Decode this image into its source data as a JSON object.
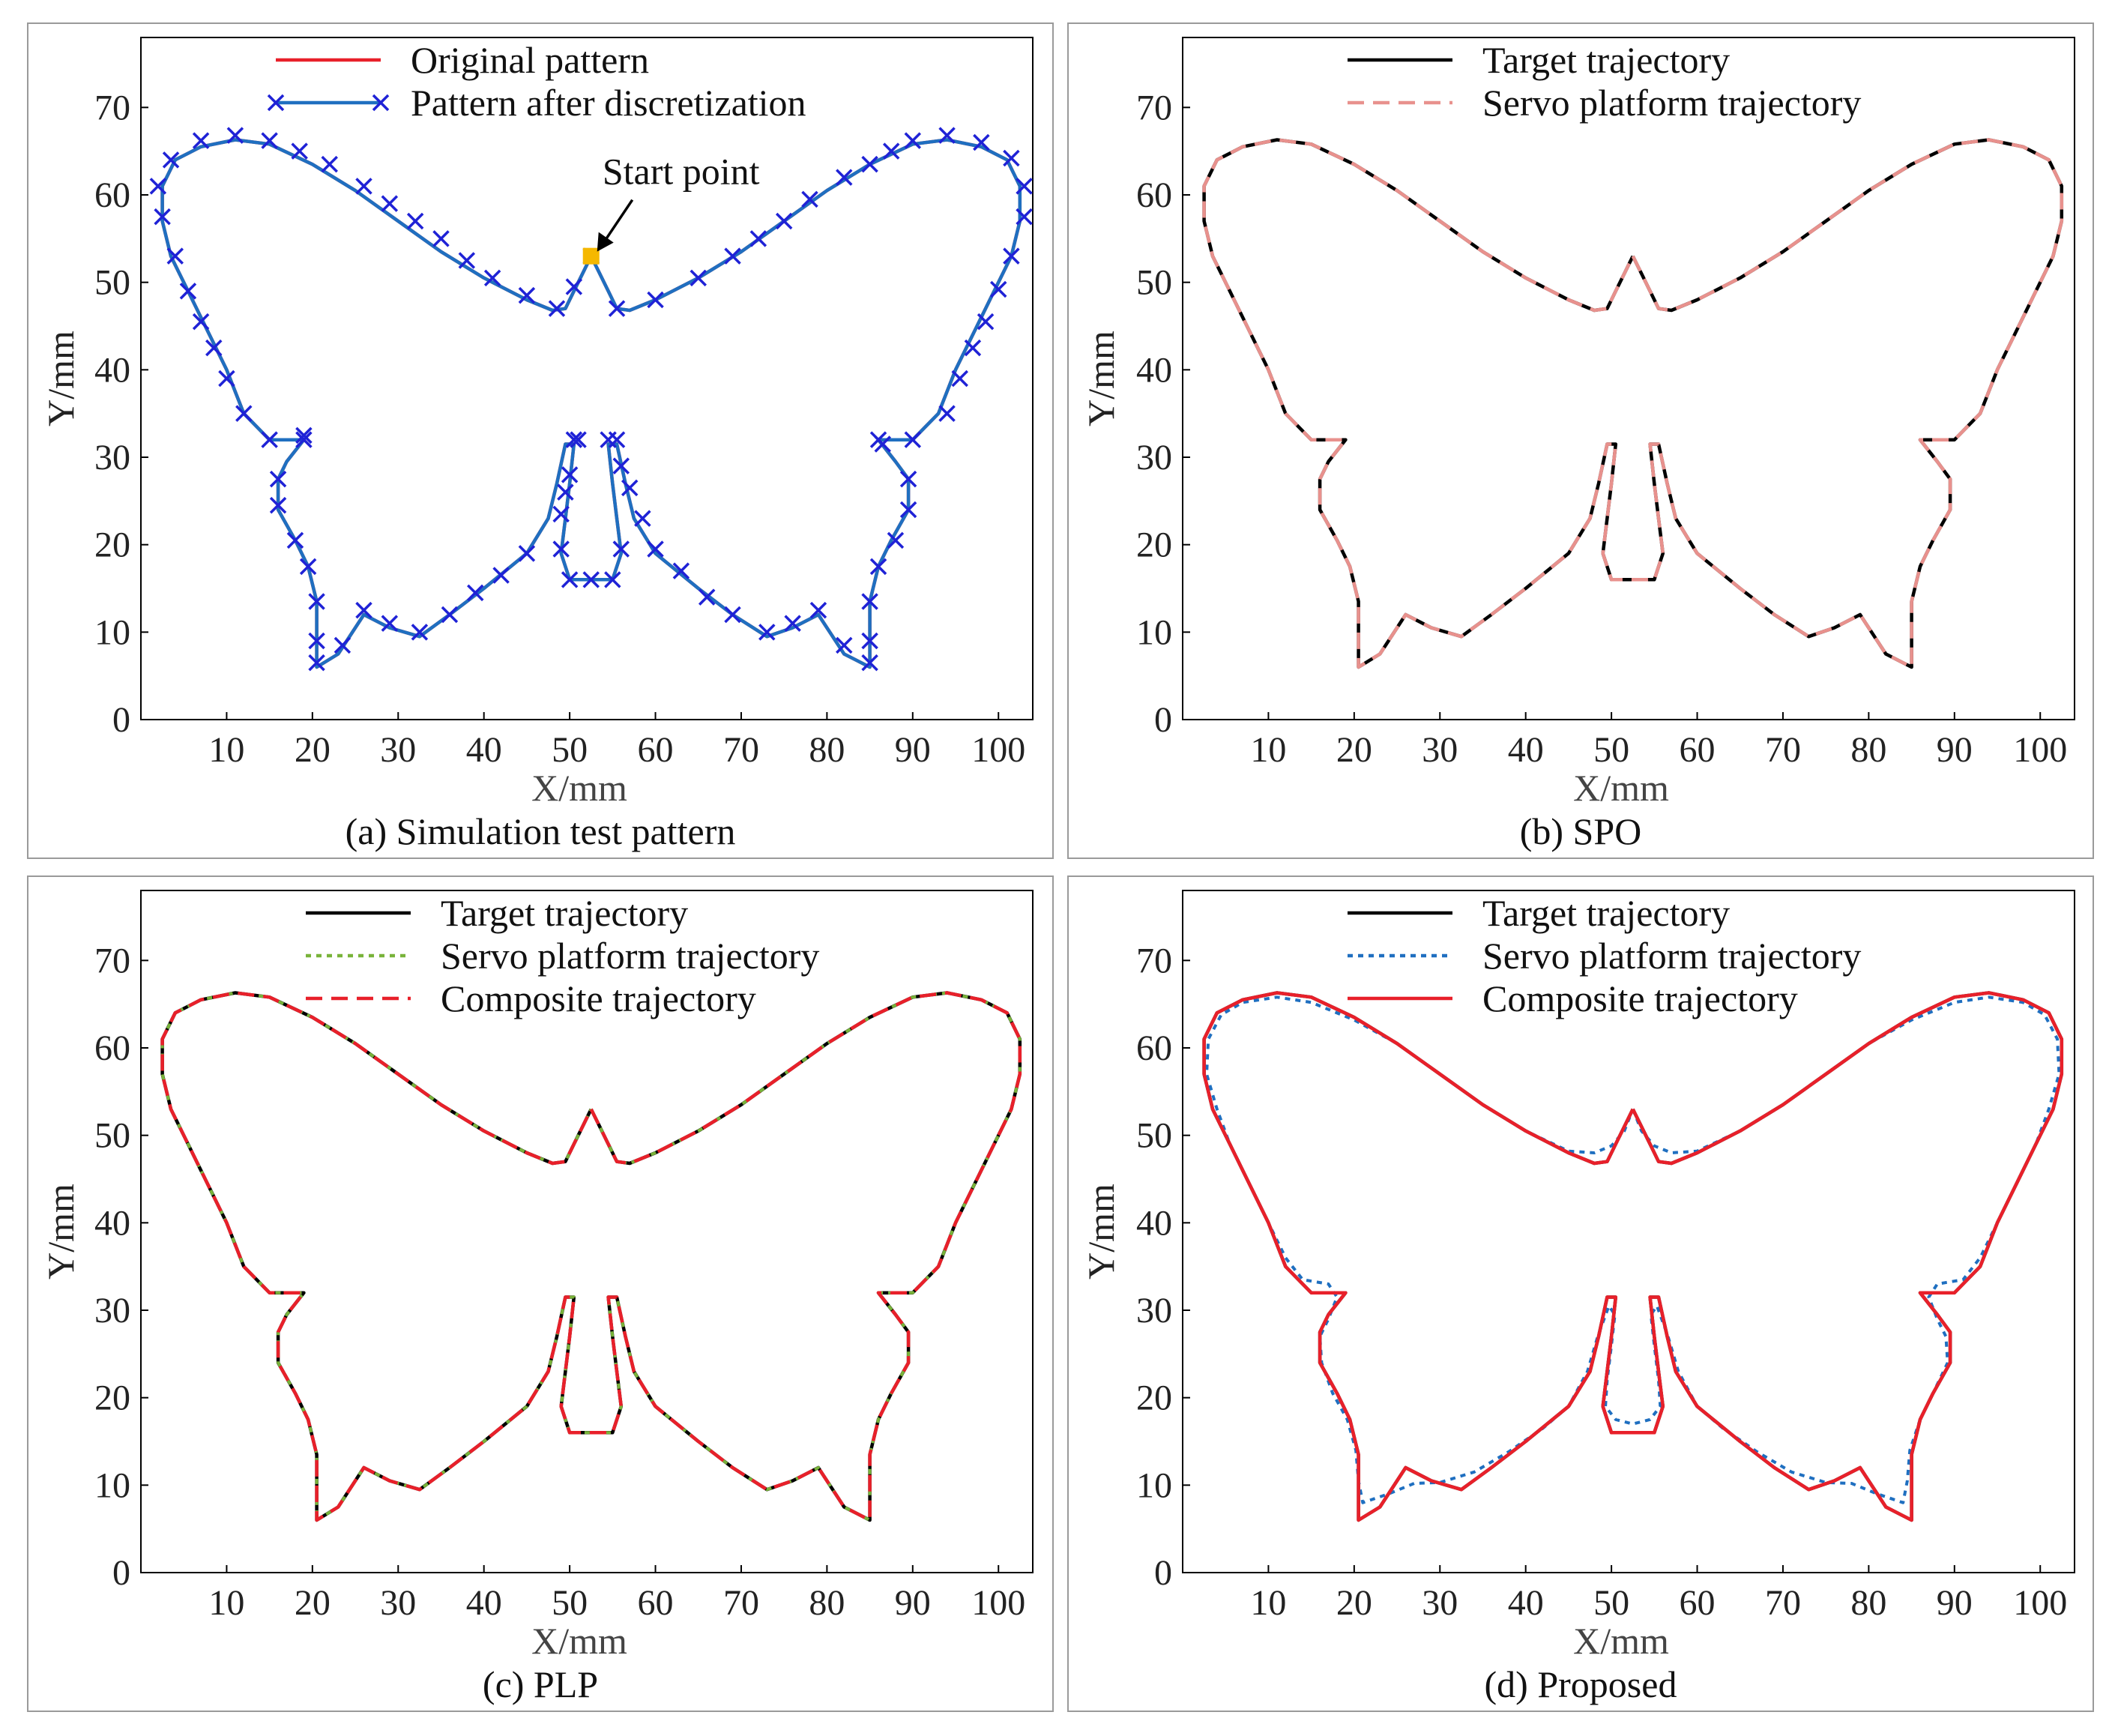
{
  "chart_data": [
    {
      "id": "a",
      "type": "line",
      "caption": "(a) Simulation test pattern",
      "xlabel": "X/mm",
      "ylabel": "Y/mm",
      "xticks": [
        10,
        20,
        30,
        40,
        50,
        60,
        70,
        80,
        90,
        100
      ],
      "yticks": [
        0,
        10,
        20,
        30,
        40,
        50,
        60,
        70
      ],
      "xlim": [
        0,
        104
      ],
      "ylim": [
        0,
        78
      ],
      "legend": [
        "Original pattern",
        "Pattern after discretization"
      ],
      "annotation": {
        "text": "Start point",
        "at": [
          52.5,
          53
        ]
      },
      "series": [
        {
          "name": "Original pattern",
          "color": "#e8202a",
          "dash": "solid",
          "path": "butterfly"
        },
        {
          "name": "Pattern after discretization",
          "color": "#1f6fc0",
          "dash": "solid",
          "path": "butterfly",
          "marker": "x",
          "marker_color": "#1f22d6"
        }
      ]
    },
    {
      "id": "b",
      "type": "line",
      "caption": "(b) SPO",
      "xlabel": "X/mm",
      "ylabel": "Y/mm",
      "xticks": [
        10,
        20,
        30,
        40,
        50,
        60,
        70,
        80,
        90,
        100
      ],
      "yticks": [
        0,
        10,
        20,
        30,
        40,
        50,
        60,
        70
      ],
      "xlim": [
        0,
        104
      ],
      "ylim": [
        0,
        78
      ],
      "legend": [
        "Target trajectory",
        "Servo platform trajectory"
      ],
      "series": [
        {
          "name": "Target trajectory",
          "color": "#000000",
          "dash": "solid",
          "path": "butterfly"
        },
        {
          "name": "Servo platform trajectory",
          "color": "#e8918d",
          "dash": "dashed",
          "path": "butterfly"
        }
      ]
    },
    {
      "id": "c",
      "type": "line",
      "caption": "(c) PLP",
      "xlabel": "X/mm",
      "ylabel": "Y/mm",
      "xticks": [
        10,
        20,
        30,
        40,
        50,
        60,
        70,
        80,
        90,
        100
      ],
      "yticks": [
        0,
        10,
        20,
        30,
        40,
        50,
        60,
        70
      ],
      "xlim": [
        0,
        104
      ],
      "ylim": [
        0,
        78
      ],
      "legend": [
        "Target trajectory",
        "Servo platform trajectory",
        "Composite trajectory"
      ],
      "series": [
        {
          "name": "Target trajectory",
          "color": "#000000",
          "dash": "solid",
          "path": "butterfly"
        },
        {
          "name": "Servo platform trajectory",
          "color": "#79b33a",
          "dash": "dotted",
          "path": "butterfly"
        },
        {
          "name": "Composite trajectory",
          "color": "#e8202a",
          "dash": "dashed",
          "path": "butterfly"
        }
      ]
    },
    {
      "id": "d",
      "type": "line",
      "caption": "(d) Proposed",
      "xlabel": "X/mm",
      "ylabel": "Y/mm",
      "xticks": [
        10,
        20,
        30,
        40,
        50,
        60,
        70,
        80,
        90,
        100
      ],
      "yticks": [
        0,
        10,
        20,
        30,
        40,
        50,
        60,
        70
      ],
      "xlim": [
        0,
        104
      ],
      "ylim": [
        0,
        78
      ],
      "legend": [
        "Target trajectory",
        "Servo platform trajectory",
        "Composite trajectory"
      ],
      "series": [
        {
          "name": "Target trajectory",
          "color": "#000000",
          "dash": "solid",
          "path": "butterfly"
        },
        {
          "name": "Servo platform trajectory",
          "color": "#1f6fc0",
          "dash": "dotted",
          "path": "butterfly_smooth"
        },
        {
          "name": "Composite trajectory",
          "color": "#e8202a",
          "dash": "solid",
          "path": "butterfly"
        }
      ]
    }
  ],
  "paths": {
    "butterfly": [
      [
        52.5,
        53
      ],
      [
        53.5,
        51
      ],
      [
        54.5,
        49
      ],
      [
        55.5,
        47
      ],
      [
        57,
        46.8
      ],
      [
        60,
        48
      ],
      [
        65,
        50.5
      ],
      [
        70,
        53.5
      ],
      [
        75,
        57
      ],
      [
        80,
        60.5
      ],
      [
        85,
        63.5
      ],
      [
        90,
        65.8
      ],
      [
        94,
        66.3
      ],
      [
        98,
        65.5
      ],
      [
        101,
        64
      ],
      [
        102.5,
        61
      ],
      [
        102.5,
        57
      ],
      [
        101.5,
        53
      ],
      [
        99.5,
        49
      ],
      [
        97.5,
        45
      ],
      [
        95,
        40
      ],
      [
        93,
        35
      ],
      [
        90,
        32
      ],
      [
        86,
        32
      ],
      [
        88,
        29.5
      ],
      [
        89.5,
        27.5
      ],
      [
        89.5,
        24
      ],
      [
        87.5,
        20.5
      ],
      [
        86,
        17.5
      ],
      [
        85,
        13.5
      ],
      [
        85,
        9
      ],
      [
        85,
        6
      ],
      [
        82,
        7.5
      ],
      [
        79,
        12
      ],
      [
        76,
        10.5
      ],
      [
        73,
        9.5
      ],
      [
        69,
        12
      ],
      [
        65,
        15
      ],
      [
        60,
        19
      ],
      [
        57.5,
        23
      ],
      [
        56.5,
        27
      ],
      [
        55.5,
        31.5
      ],
      [
        54.5,
        31.5
      ],
      [
        55,
        27
      ],
      [
        55.5,
        23
      ],
      [
        56,
        19
      ],
      [
        55,
        16
      ],
      [
        52.5,
        16
      ],
      [
        50,
        16
      ],
      [
        49,
        19
      ],
      [
        49.5,
        23
      ],
      [
        50,
        27
      ],
      [
        50.5,
        31.5
      ],
      [
        49.5,
        31.5
      ],
      [
        48.5,
        27
      ],
      [
        47.5,
        23
      ],
      [
        45,
        19
      ],
      [
        40,
        15
      ],
      [
        36,
        12
      ],
      [
        32.5,
        9.5
      ],
      [
        29,
        10.5
      ],
      [
        26,
        12
      ],
      [
        23,
        7.5
      ],
      [
        20.5,
        6
      ],
      [
        20.5,
        9
      ],
      [
        20.5,
        13.5
      ],
      [
        19.5,
        17.5
      ],
      [
        18,
        20.5
      ],
      [
        16,
        24
      ],
      [
        16,
        27.5
      ],
      [
        17,
        29.5
      ],
      [
        19,
        32
      ],
      [
        15,
        32
      ],
      [
        12,
        35
      ],
      [
        10,
        40
      ],
      [
        7.5,
        45
      ],
      [
        5.5,
        49
      ],
      [
        3.5,
        53
      ],
      [
        2.5,
        57
      ],
      [
        2.5,
        61
      ],
      [
        4,
        64
      ],
      [
        7,
        65.5
      ],
      [
        11,
        66.3
      ],
      [
        15,
        65.8
      ],
      [
        20,
        63.5
      ],
      [
        25,
        60.5
      ],
      [
        30,
        57
      ],
      [
        35,
        53.5
      ],
      [
        40,
        50.5
      ],
      [
        45,
        48
      ],
      [
        48,
        46.8
      ],
      [
        49.5,
        47
      ],
      [
        50.5,
        49
      ],
      [
        51.5,
        51
      ],
      [
        52.5,
        53
      ]
    ],
    "butterfly_smooth": [
      [
        52.5,
        53
      ],
      [
        53.5,
        50.5
      ],
      [
        55,
        48.8
      ],
      [
        57,
        48
      ],
      [
        60,
        48.2
      ],
      [
        65,
        50.5
      ],
      [
        70,
        53.5
      ],
      [
        75,
        57
      ],
      [
        80,
        60.5
      ],
      [
        85,
        63.2
      ],
      [
        90,
        65.2
      ],
      [
        94,
        65.8
      ],
      [
        98,
        65.2
      ],
      [
        100.5,
        63.8
      ],
      [
        102,
        61
      ],
      [
        102.2,
        57
      ],
      [
        101,
        53
      ],
      [
        99.5,
        49
      ],
      [
        97.5,
        45
      ],
      [
        95,
        40
      ],
      [
        93,
        36
      ],
      [
        91,
        33.5
      ],
      [
        88,
        33
      ],
      [
        87,
        31.5
      ],
      [
        88,
        29
      ],
      [
        89,
        27
      ],
      [
        89.2,
        24
      ],
      [
        87.5,
        20.5
      ],
      [
        86,
        17.5
      ],
      [
        84.8,
        14
      ],
      [
        84.5,
        10.5
      ],
      [
        84,
        8
      ],
      [
        81,
        9
      ],
      [
        78,
        10.2
      ],
      [
        75,
        10.3
      ],
      [
        71,
        11.5
      ],
      [
        67,
        13.8
      ],
      [
        63,
        16.5
      ],
      [
        60,
        19
      ],
      [
        57.8,
        23
      ],
      [
        56.6,
        27
      ],
      [
        55.3,
        30.5
      ],
      [
        54.6,
        29.5
      ],
      [
        55,
        26
      ],
      [
        55.5,
        22
      ],
      [
        55.7,
        19
      ],
      [
        54.5,
        17.5
      ],
      [
        52.5,
        17
      ],
      [
        50.5,
        17.5
      ],
      [
        49.3,
        19
      ],
      [
        49.5,
        22
      ],
      [
        50,
        26
      ],
      [
        50.4,
        29.5
      ],
      [
        49.7,
        30.5
      ],
      [
        48.4,
        27
      ],
      [
        47.2,
        23
      ],
      [
        45,
        19
      ],
      [
        42,
        16.5
      ],
      [
        38,
        13.8
      ],
      [
        34,
        11.5
      ],
      [
        30,
        10.3
      ],
      [
        27,
        10.2
      ],
      [
        24,
        9
      ],
      [
        21,
        8
      ],
      [
        20.5,
        10.5
      ],
      [
        20.2,
        14
      ],
      [
        19.2,
        17.5
      ],
      [
        17.5,
        20.5
      ],
      [
        16.2,
        24
      ],
      [
        16,
        27
      ],
      [
        17,
        29
      ],
      [
        18,
        31.5
      ],
      [
        17,
        33
      ],
      [
        14,
        33.5
      ],
      [
        12,
        36
      ],
      [
        10,
        40
      ],
      [
        7.5,
        45
      ],
      [
        5.5,
        49
      ],
      [
        4,
        53
      ],
      [
        2.8,
        57
      ],
      [
        3,
        61
      ],
      [
        4.5,
        63.8
      ],
      [
        7,
        65.2
      ],
      [
        11,
        65.8
      ],
      [
        15,
        65.2
      ],
      [
        20,
        63.2
      ],
      [
        25,
        60.5
      ],
      [
        30,
        57
      ],
      [
        35,
        53.5
      ],
      [
        40,
        50.5
      ],
      [
        45,
        48.2
      ],
      [
        48,
        48
      ],
      [
        50,
        48.8
      ],
      [
        51.5,
        50.5
      ],
      [
        52.5,
        53
      ]
    ],
    "marker_points": [
      [
        52.5,
        53
      ],
      [
        55.5,
        47
      ],
      [
        60,
        48
      ],
      [
        65,
        50.5
      ],
      [
        69,
        53
      ],
      [
        72,
        55
      ],
      [
        75,
        57
      ],
      [
        78,
        59.5
      ],
      [
        82,
        62
      ],
      [
        85,
        63.5
      ],
      [
        87.5,
        65
      ],
      [
        90,
        66.2
      ],
      [
        94,
        66.8
      ],
      [
        98,
        66
      ],
      [
        101.5,
        64.2
      ],
      [
        103,
        61
      ],
      [
        103,
        57.5
      ],
      [
        101.5,
        53
      ],
      [
        100,
        49.2
      ],
      [
        98.5,
        45.5
      ],
      [
        97,
        42.5
      ],
      [
        95.5,
        39
      ],
      [
        94,
        35
      ],
      [
        90,
        32
      ],
      [
        86,
        32
      ],
      [
        86.5,
        31.5
      ],
      [
        89.5,
        27.5
      ],
      [
        89.5,
        24
      ],
      [
        88,
        20.5
      ],
      [
        86,
        17.5
      ],
      [
        85,
        13.5
      ],
      [
        85,
        9
      ],
      [
        85,
        6.5
      ],
      [
        82,
        8.5
      ],
      [
        79,
        12.5
      ],
      [
        76,
        11
      ],
      [
        73,
        10
      ],
      [
        69,
        12
      ],
      [
        66,
        14
      ],
      [
        63,
        17
      ],
      [
        60,
        19.5
      ],
      [
        58.5,
        23
      ],
      [
        57,
        26.5
      ],
      [
        56,
        29
      ],
      [
        55.5,
        32
      ],
      [
        54.5,
        32
      ],
      [
        56,
        19.5
      ],
      [
        55,
        16
      ],
      [
        52.5,
        16
      ],
      [
        50,
        16
      ],
      [
        49,
        19.5
      ],
      [
        49,
        23.5
      ],
      [
        49.5,
        26
      ],
      [
        50,
        28
      ],
      [
        50.5,
        32
      ],
      [
        51,
        32
      ],
      [
        45,
        19
      ],
      [
        42,
        16.5
      ],
      [
        39,
        14.5
      ],
      [
        36,
        12
      ],
      [
        32.5,
        10
      ],
      [
        29,
        11
      ],
      [
        26,
        12.5
      ],
      [
        23.5,
        8.5
      ],
      [
        20.5,
        6.5
      ],
      [
        20.5,
        9
      ],
      [
        20.5,
        13.5
      ],
      [
        19.5,
        17.5
      ],
      [
        18,
        20.5
      ],
      [
        16,
        24.5
      ],
      [
        16,
        27.5
      ],
      [
        19,
        32
      ],
      [
        19,
        32.5
      ],
      [
        15,
        32
      ],
      [
        12,
        35
      ],
      [
        10,
        39
      ],
      [
        8.5,
        42.5
      ],
      [
        7,
        45.5
      ],
      [
        5.5,
        49
      ],
      [
        4,
        53
      ],
      [
        2.5,
        57.5
      ],
      [
        2,
        61
      ],
      [
        3.5,
        64
      ],
      [
        7,
        66.2
      ],
      [
        11,
        66.8
      ],
      [
        15,
        66.2
      ],
      [
        18.5,
        65
      ],
      [
        22,
        63.5
      ],
      [
        26,
        61
      ],
      [
        29,
        59
      ],
      [
        32,
        57
      ],
      [
        35,
        55
      ],
      [
        38,
        52.5
      ],
      [
        41,
        50.5
      ],
      [
        45,
        48.5
      ],
      [
        48.5,
        47
      ],
      [
        50.5,
        49.5
      ]
    ]
  }
}
